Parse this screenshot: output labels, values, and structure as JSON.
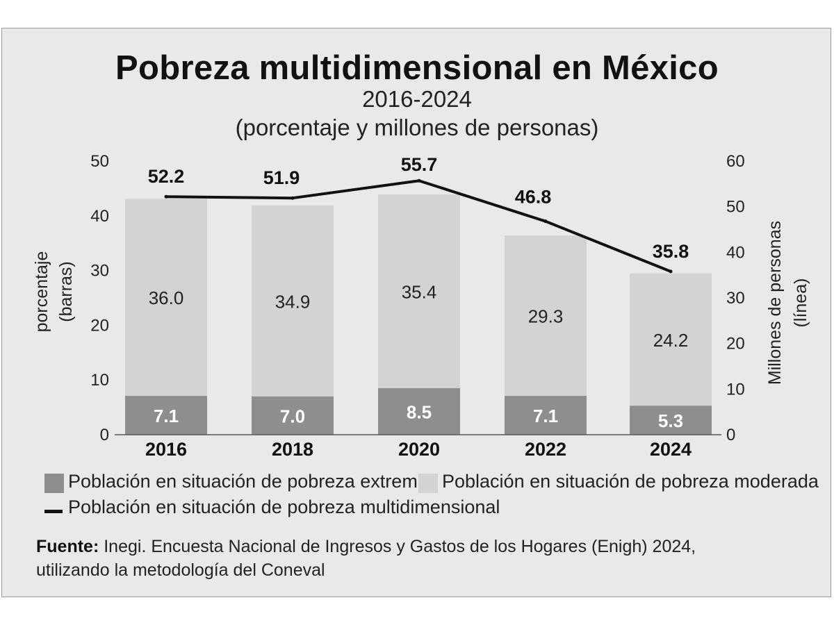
{
  "title": "Pobreza multidimensional en México",
  "subtitle": "2016-2024",
  "subtitle2": "(porcentaje y millones de personas)",
  "colors": {
    "extreme": "#8e8e8e",
    "moderate": "#d3d3d3",
    "line": "#111111",
    "background": "#e9e9e9"
  },
  "chart_data": {
    "type": "bar",
    "stacked": true,
    "categories": [
      "2016",
      "2018",
      "2020",
      "2022",
      "2024"
    ],
    "series": [
      {
        "name": "Población en situación de pobreza extrema",
        "type": "bar",
        "axis": "left",
        "values": [
          7.1,
          7.0,
          8.5,
          7.1,
          5.3
        ],
        "labels": [
          "7.1",
          "7.0",
          "8.5",
          "7.1",
          "5.3"
        ]
      },
      {
        "name": "Población en situación de pobreza moderada",
        "type": "bar",
        "axis": "left",
        "values": [
          36.0,
          34.9,
          35.4,
          29.3,
          24.2
        ],
        "labels": [
          "36.0",
          "34.9",
          "35.4",
          "29.3",
          "24.2"
        ]
      },
      {
        "name": "Población en situación de pobreza multidimensional",
        "type": "line",
        "axis": "right",
        "values": [
          52.2,
          51.9,
          55.7,
          46.8,
          35.8
        ],
        "labels": [
          "52.2",
          "51.9",
          "55.7",
          "46.8",
          "35.8"
        ]
      }
    ],
    "yleft": {
      "label_line1": "porcentaje",
      "label_line2": "(barras)",
      "lim": [
        0,
        50
      ],
      "ticks": [
        "0",
        "10",
        "20",
        "30",
        "40",
        "50"
      ]
    },
    "yright": {
      "label_line1": "Millones de personas",
      "label_line2": "(línea)",
      "lim": [
        0,
        60
      ],
      "ticks": [
        "0",
        "10",
        "20",
        "30",
        "40",
        "50",
        "60"
      ]
    },
    "legend_position": "bottom"
  },
  "legend": {
    "extreme": "Población en situación de pobreza extrema",
    "moderate": "Población en situación de pobreza moderada",
    "line": "Población en situación de pobreza multidimensional"
  },
  "source": {
    "prefix": "Fuente:",
    "text": " Inegi. Encuesta Nacional de Ingresos y Gastos de los Hogares (Enigh) 2024,",
    "text2": "utilizando la metodología del Coneval"
  }
}
